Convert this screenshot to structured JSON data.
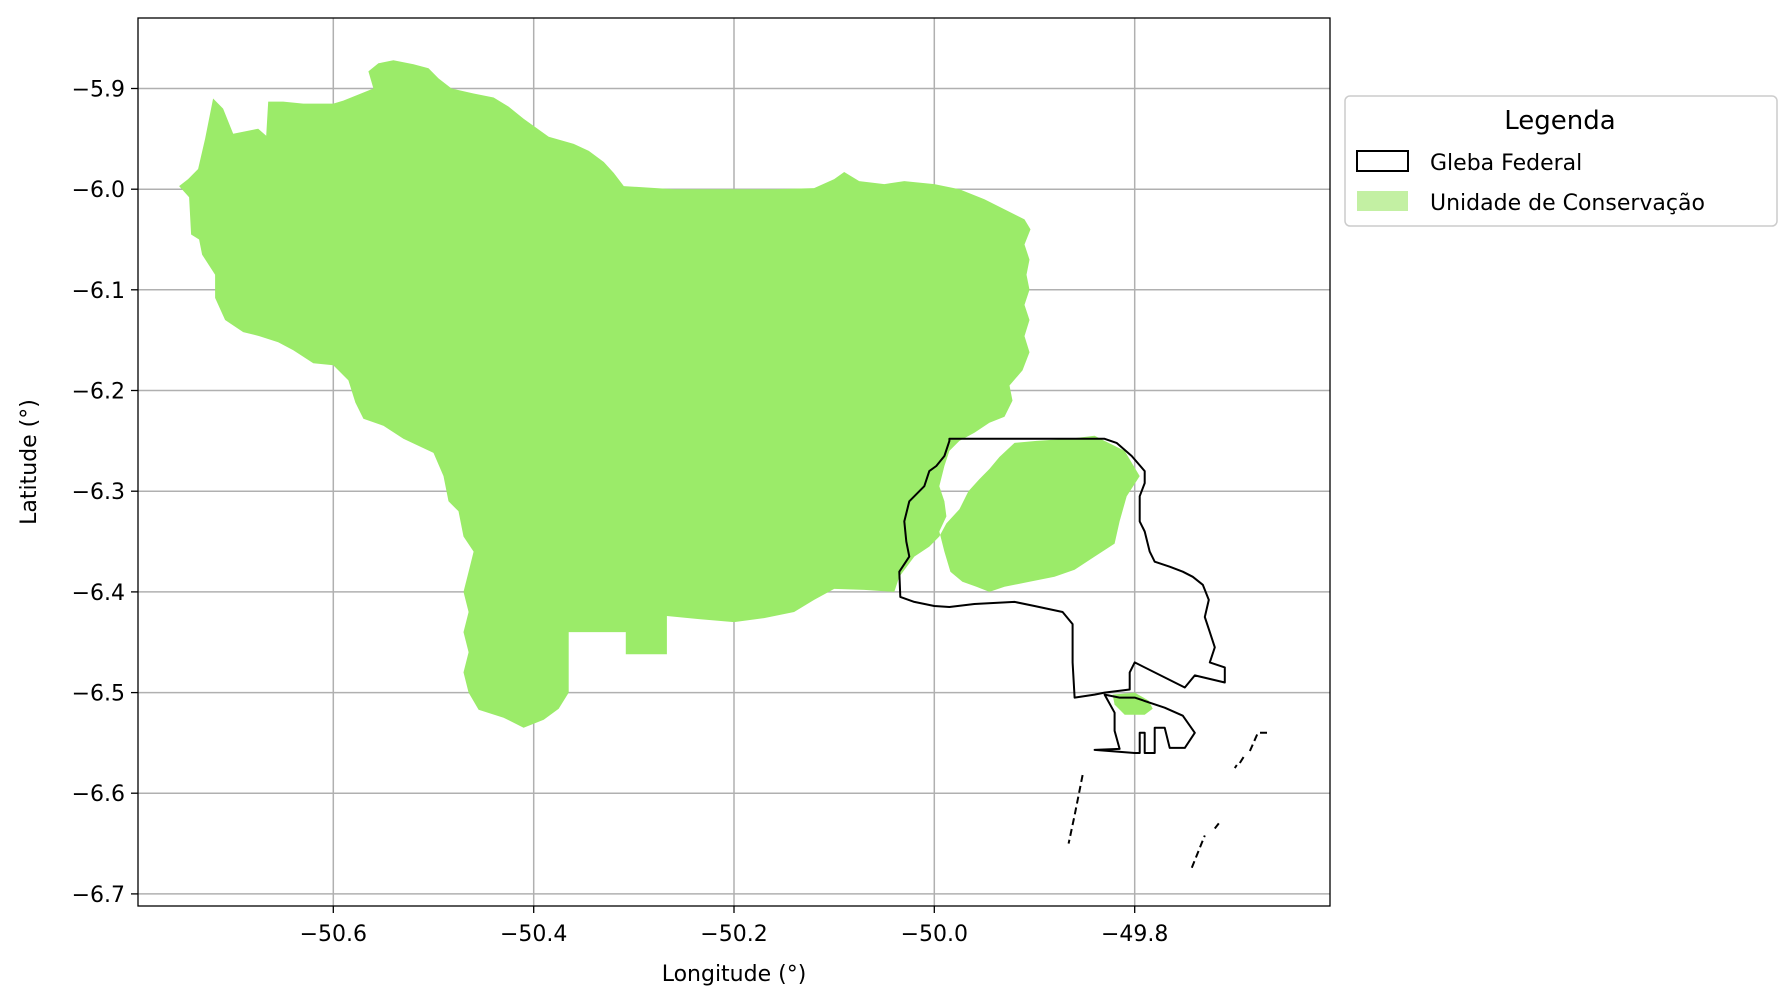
{
  "chart_data": {
    "type": "map",
    "xlabel": "Longitude (°)",
    "ylabel": "Latitude (°)",
    "xlim": [
      -50.795,
      -49.605
    ],
    "ylim": [
      -6.712,
      -5.83
    ],
    "x_ticks": [
      -50.6,
      -50.4,
      -50.2,
      -50.0,
      -49.8
    ],
    "x_tick_labels": [
      "−50.6",
      "−50.4",
      "−50.2",
      "−50.0",
      "−49.8"
    ],
    "y_ticks": [
      -5.9,
      -6.0,
      -6.1,
      -6.2,
      -6.3,
      -6.4,
      -6.5,
      -6.6,
      -6.7
    ],
    "y_tick_labels": [
      "−5.9",
      "−6.0",
      "−6.1",
      "−6.2",
      "−6.3",
      "−6.4",
      "−6.5",
      "−6.6",
      "−6.7"
    ],
    "grid": true,
    "legend": {
      "title": "Legenda",
      "placement": "outside upper right",
      "entries": [
        "Gleba Federal",
        "Unidade de Conservação"
      ]
    },
    "colors": {
      "conservation_fill": "#9beb69",
      "conservation_legend": "#c3f0a3",
      "gleba_edge": "#000000",
      "grid": "#b0b0b0"
    },
    "layers": [
      {
        "name": "Unidade de Conservação",
        "style": "fill",
        "rings": [
          [
            [
              -50.754,
              -5.997
            ],
            [
              -50.744,
              -6.008
            ],
            [
              -50.742,
              -6.045
            ],
            [
              -50.734,
              -6.05
            ],
            [
              -50.731,
              -6.065
            ],
            [
              -50.718,
              -6.085
            ],
            [
              -50.718,
              -6.108
            ],
            [
              -50.708,
              -6.13
            ],
            [
              -50.69,
              -6.142
            ],
            [
              -50.674,
              -6.146
            ],
            [
              -50.655,
              -6.152
            ],
            [
              -50.64,
              -6.16
            ],
            [
              -50.62,
              -6.173
            ],
            [
              -50.6,
              -6.175
            ],
            [
              -50.585,
              -6.19
            ],
            [
              -50.578,
              -6.212
            ],
            [
              -50.57,
              -6.228
            ],
            [
              -50.55,
              -6.235
            ],
            [
              -50.53,
              -6.248
            ],
            [
              -50.5,
              -6.262
            ],
            [
              -50.49,
              -6.285
            ],
            [
              -50.485,
              -6.31
            ],
            [
              -50.475,
              -6.32
            ],
            [
              -50.47,
              -6.345
            ],
            [
              -50.46,
              -6.36
            ],
            [
              -50.465,
              -6.38
            ],
            [
              -50.47,
              -6.4
            ],
            [
              -50.465,
              -6.42
            ],
            [
              -50.47,
              -6.44
            ],
            [
              -50.465,
              -6.46
            ],
            [
              -50.47,
              -6.48
            ],
            [
              -50.465,
              -6.5
            ],
            [
              -50.455,
              -6.517
            ],
            [
              -50.43,
              -6.525
            ],
            [
              -50.41,
              -6.535
            ],
            [
              -50.39,
              -6.527
            ],
            [
              -50.375,
              -6.516
            ],
            [
              -50.365,
              -6.5
            ],
            [
              -50.365,
              -6.44
            ],
            [
              -50.308,
              -6.44
            ],
            [
              -50.308,
              -6.462
            ],
            [
              -50.267,
              -6.462
            ],
            [
              -50.267,
              -6.424
            ],
            [
              -50.235,
              -6.427
            ],
            [
              -50.2,
              -6.43
            ],
            [
              -50.17,
              -6.426
            ],
            [
              -50.14,
              -6.42
            ],
            [
              -50.12,
              -6.408
            ],
            [
              -50.1,
              -6.397
            ],
            [
              -50.07,
              -6.398
            ],
            [
              -50.04,
              -6.4
            ],
            [
              -50.035,
              -6.385
            ],
            [
              -50.02,
              -6.365
            ],
            [
              -50.005,
              -6.355
            ],
            [
              -49.995,
              -6.345
            ],
            [
              -49.988,
              -6.332
            ],
            [
              -49.975,
              -6.318
            ],
            [
              -49.966,
              -6.3
            ],
            [
              -49.955,
              -6.288
            ],
            [
              -49.945,
              -6.278
            ],
            [
              -49.935,
              -6.266
            ],
            [
              -49.92,
              -6.252
            ],
            [
              -49.898,
              -6.25
            ],
            [
              -49.865,
              -6.248
            ],
            [
              -49.84,
              -6.245
            ],
            [
              -49.83,
              -6.25
            ],
            [
              -49.81,
              -6.26
            ],
            [
              -49.795,
              -6.285
            ],
            [
              -49.808,
              -6.305
            ],
            [
              -49.815,
              -6.33
            ],
            [
              -49.82,
              -6.352
            ],
            [
              -49.84,
              -6.365
            ],
            [
              -49.86,
              -6.378
            ],
            [
              -49.88,
              -6.385
            ],
            [
              -49.905,
              -6.39
            ],
            [
              -49.93,
              -6.395
            ],
            [
              -49.945,
              -6.4
            ],
            [
              -49.958,
              -6.395
            ],
            [
              -49.972,
              -6.39
            ],
            [
              -49.984,
              -6.38
            ],
            [
              -49.99,
              -6.36
            ],
            [
              -49.995,
              -6.34
            ],
            [
              -49.988,
              -6.325
            ],
            [
              -49.99,
              -6.31
            ],
            [
              -49.995,
              -6.295
            ],
            [
              -49.99,
              -6.275
            ],
            [
              -49.985,
              -6.26
            ],
            [
              -49.975,
              -6.25
            ],
            [
              -49.96,
              -6.242
            ],
            [
              -49.945,
              -6.232
            ],
            [
              -49.93,
              -6.226
            ],
            [
              -49.922,
              -6.21
            ],
            [
              -49.925,
              -6.195
            ],
            [
              -49.912,
              -6.18
            ],
            [
              -49.905,
              -6.162
            ],
            [
              -49.91,
              -6.146
            ],
            [
              -49.905,
              -6.13
            ],
            [
              -49.91,
              -6.115
            ],
            [
              -49.905,
              -6.1
            ],
            [
              -49.908,
              -6.085
            ],
            [
              -49.905,
              -6.07
            ],
            [
              -49.91,
              -6.055
            ],
            [
              -49.904,
              -6.04
            ],
            [
              -49.91,
              -6.03
            ],
            [
              -49.95,
              -6.01
            ],
            [
              -49.975,
              -6.0
            ],
            [
              -50.0,
              -5.995
            ],
            [
              -50.03,
              -5.992
            ],
            [
              -50.05,
              -5.995
            ],
            [
              -50.075,
              -5.992
            ],
            [
              -50.09,
              -5.983
            ],
            [
              -50.1,
              -5.99
            ],
            [
              -50.12,
              -5.999
            ],
            [
              -50.16,
              -6.0
            ],
            [
              -50.2,
              -6.0
            ],
            [
              -50.26,
              -6.0
            ],
            [
              -50.31,
              -5.997
            ],
            [
              -50.32,
              -5.984
            ],
            [
              -50.33,
              -5.973
            ],
            [
              -50.345,
              -5.962
            ],
            [
              -50.36,
              -5.955
            ],
            [
              -50.385,
              -5.948
            ],
            [
              -50.41,
              -5.93
            ],
            [
              -50.425,
              -5.918
            ],
            [
              -50.44,
              -5.909
            ],
            [
              -50.46,
              -5.905
            ],
            [
              -50.482,
              -5.9
            ],
            [
              -50.495,
              -5.89
            ],
            [
              -50.505,
              -5.88
            ],
            [
              -50.52,
              -5.876
            ],
            [
              -50.54,
              -5.872
            ],
            [
              -50.555,
              -5.875
            ],
            [
              -50.565,
              -5.883
            ],
            [
              -50.56,
              -5.9
            ],
            [
              -50.59,
              -5.912
            ],
            [
              -50.6,
              -5.915
            ],
            [
              -50.63,
              -5.915
            ],
            [
              -50.65,
              -5.913
            ],
            [
              -50.665,
              -5.913
            ],
            [
              -50.667,
              -5.947
            ],
            [
              -50.675,
              -5.94
            ],
            [
              -50.7,
              -5.945
            ],
            [
              -50.71,
              -5.92
            ],
            [
              -50.72,
              -5.91
            ],
            [
              -50.728,
              -5.95
            ],
            [
              -50.735,
              -5.98
            ],
            [
              -50.745,
              -5.99
            ]
          ],
          [
            [
              -49.822,
              -6.502
            ],
            [
              -49.8,
              -6.5
            ],
            [
              -49.786,
              -6.508
            ],
            [
              -49.782,
              -6.516
            ],
            [
              -49.79,
              -6.522
            ],
            [
              -49.81,
              -6.522
            ],
            [
              -49.82,
              -6.512
            ]
          ]
        ]
      },
      {
        "name": "Gleba Federal",
        "style": "outline",
        "rings": [
          [
            [
              -49.985,
              -6.248
            ],
            [
              -49.95,
              -6.248
            ],
            [
              -49.9,
              -6.248
            ],
            [
              -49.85,
              -6.248
            ],
            [
              -49.83,
              -6.248
            ],
            [
              -49.818,
              -6.252
            ],
            [
              -49.803,
              -6.265
            ],
            [
              -49.79,
              -6.28
            ],
            [
              -49.79,
              -6.292
            ],
            [
              -49.795,
              -6.305
            ],
            [
              -49.795,
              -6.33
            ],
            [
              -49.79,
              -6.34
            ],
            [
              -49.785,
              -6.36
            ],
            [
              -49.78,
              -6.37
            ],
            [
              -49.765,
              -6.375
            ],
            [
              -49.752,
              -6.38
            ],
            [
              -49.742,
              -6.385
            ],
            [
              -49.732,
              -6.393
            ],
            [
              -49.726,
              -6.408
            ],
            [
              -49.73,
              -6.425
            ],
            [
              -49.725,
              -6.44
            ],
            [
              -49.72,
              -6.455
            ],
            [
              -49.725,
              -6.47
            ],
            [
              -49.71,
              -6.475
            ],
            [
              -49.71,
              -6.49
            ],
            [
              -49.74,
              -6.483
            ],
            [
              -49.75,
              -6.495
            ],
            [
              -49.8,
              -6.47
            ],
            [
              -49.805,
              -6.48
            ],
            [
              -49.805,
              -6.497
            ],
            [
              -49.83,
              -6.5
            ],
            [
              -49.84,
              -6.502
            ],
            [
              -49.86,
              -6.505
            ],
            [
              -49.862,
              -6.47
            ],
            [
              -49.862,
              -6.432
            ],
            [
              -49.872,
              -6.42
            ],
            [
              -49.9,
              -6.414
            ],
            [
              -49.92,
              -6.41
            ],
            [
              -49.96,
              -6.412
            ],
            [
              -49.985,
              -6.415
            ],
            [
              -50.0,
              -6.414
            ],
            [
              -50.02,
              -6.41
            ],
            [
              -50.034,
              -6.405
            ],
            [
              -50.035,
              -6.38
            ],
            [
              -50.025,
              -6.365
            ],
            [
              -50.028,
              -6.35
            ],
            [
              -50.03,
              -6.33
            ],
            [
              -50.025,
              -6.31
            ],
            [
              -50.01,
              -6.295
            ],
            [
              -50.005,
              -6.28
            ],
            [
              -49.998,
              -6.275
            ],
            [
              -49.99,
              -6.265
            ],
            [
              -49.985,
              -6.25
            ]
          ],
          [
            [
              -49.83,
              -6.502
            ],
            [
              -49.82,
              -6.52
            ],
            [
              -49.82,
              -6.538
            ],
            [
              -49.815,
              -6.556
            ],
            [
              -49.84,
              -6.557
            ],
            [
              -49.8,
              -6.56
            ],
            [
              -49.795,
              -6.56
            ],
            [
              -49.795,
              -6.54
            ],
            [
              -49.79,
              -6.54
            ],
            [
              -49.79,
              -6.56
            ],
            [
              -49.78,
              -6.56
            ],
            [
              -49.78,
              -6.535
            ],
            [
              -49.77,
              -6.535
            ],
            [
              -49.765,
              -6.555
            ],
            [
              -49.75,
              -6.555
            ],
            [
              -49.74,
              -6.54
            ],
            [
              -49.752,
              -6.523
            ],
            [
              -49.77,
              -6.515
            ],
            [
              -49.8,
              -6.505
            ],
            [
              -49.815,
              -6.505
            ],
            [
              -49.83,
              -6.502
            ]
          ]
        ],
        "segments": [
          [
            [
              -49.852,
              -6.582
            ],
            [
              -49.86,
              -6.622
            ],
            [
              -49.866,
              -6.65
            ]
          ],
          [
            [
              -49.743,
              -6.674
            ],
            [
              -49.73,
              -6.642
            ]
          ],
          [
            [
              -49.72,
              -6.635
            ],
            [
              -49.716,
              -6.63
            ]
          ],
          [
            [
              -49.695,
              -6.57
            ],
            [
              -49.69,
              -6.562
            ]
          ],
          [
            [
              -49.685,
              -6.558
            ],
            [
              -49.677,
              -6.54
            ],
            [
              -49.665,
              -6.54
            ]
          ],
          [
            [
              -49.7,
              -6.575
            ],
            [
              -49.698,
              -6.572
            ]
          ]
        ]
      }
    ]
  }
}
